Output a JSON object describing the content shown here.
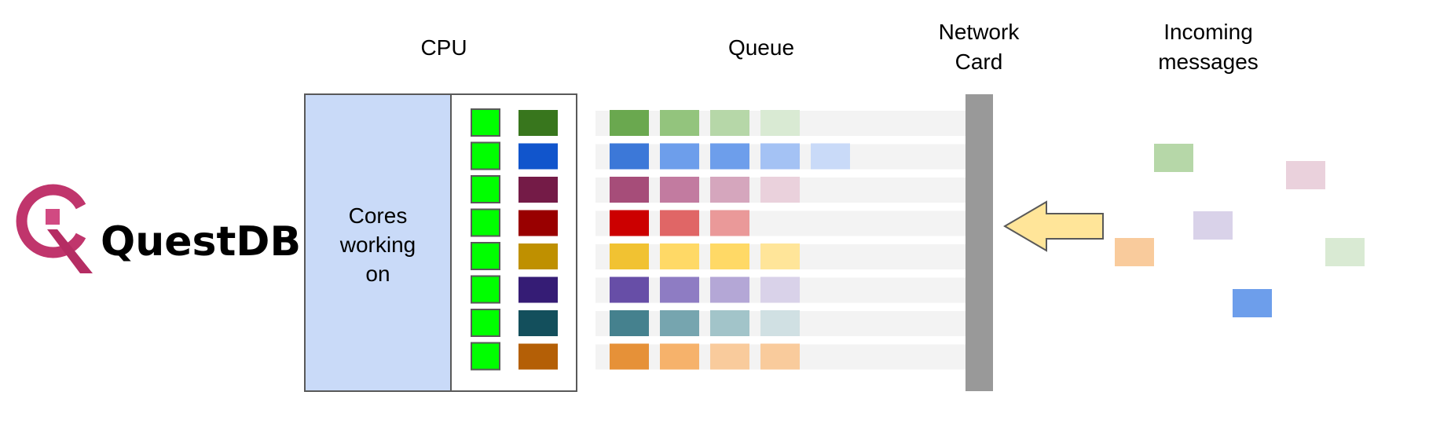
{
  "logo": {
    "text": "QuestDB",
    "color": "#c0356c"
  },
  "labels": {
    "cpu": "CPU",
    "queue": "Queue",
    "network_line1": "Network",
    "network_line2": "Card",
    "incoming_line1": "Incoming",
    "incoming_line2": "messages",
    "cores_line1": "Cores",
    "cores_line2": "working",
    "cores_line3": "on"
  },
  "colors": {
    "cores_panel": "#c9daf8",
    "core_active": "#00ff00",
    "queue_lane": "#f3f3f3",
    "network_card": "#999999",
    "arrow_fill": "#ffe599",
    "outline": "#595959"
  },
  "rows": [
    {
      "current": "#38761d",
      "queue": [
        "#6aa84f",
        "#93c47d",
        "#b6d7a8",
        "#d9ead3"
      ]
    },
    {
      "current": "#1155cc",
      "queue": [
        "#3c78d8",
        "#6d9eeb",
        "#6d9eeb",
        "#a4c2f4",
        "#c9daf8"
      ]
    },
    {
      "current": "#741b47",
      "queue": [
        "#a64d79",
        "#c27ba0",
        "#d5a6bd",
        "#ead1dc"
      ]
    },
    {
      "current": "#990000",
      "queue": [
        "#cc0000",
        "#e06666",
        "#ea9999"
      ]
    },
    {
      "current": "#bf9000",
      "queue": [
        "#f1c232",
        "#ffd966",
        "#ffd966",
        "#ffe599"
      ]
    },
    {
      "current": "#351c75",
      "queue": [
        "#674ea7",
        "#8e7cc3",
        "#b4a7d6",
        "#d9d2e9"
      ]
    },
    {
      "current": "#134f5c",
      "queue": [
        "#45818e",
        "#76a5af",
        "#a2c4c9",
        "#d0e0e3"
      ]
    },
    {
      "current": "#b45f06",
      "queue": [
        "#e69138",
        "#f6b26b",
        "#f9cb9c",
        "#f9cb9c"
      ]
    }
  ],
  "incoming": [
    "#b6d7a8",
    "#ead1dc",
    "#d9d2e9",
    "#f9cb9c",
    "#d9ead3",
    "#6d9eeb"
  ]
}
